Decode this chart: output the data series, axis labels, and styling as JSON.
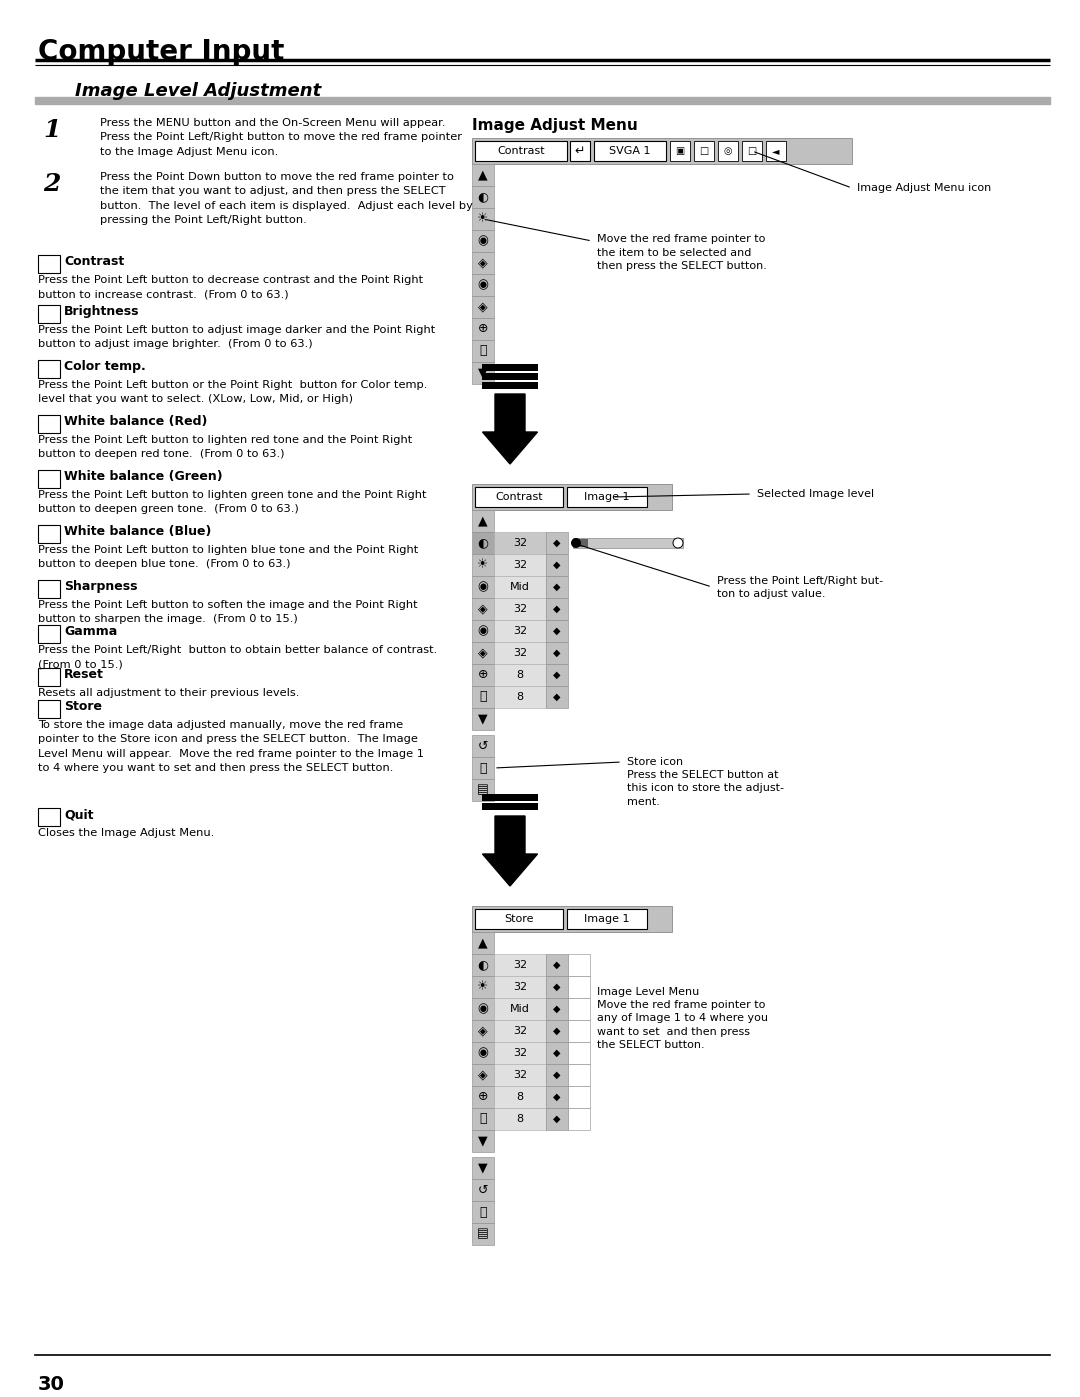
{
  "page_title": "Computer Input",
  "section_title": "Image Level Adjustment",
  "bg_color": "#ffffff",
  "step1_num": "1",
  "step1_text": "Press the MENU button and the On-Screen Menu will appear.\nPress the Point Left/Right button to move the red frame pointer\nto the Image Adjust Menu icon.",
  "step2_num": "2",
  "step2_text": "Press the Point Down button to move the red frame pointer to\nthe item that you want to adjust, and then press the SELECT\nbutton.  The level of each item is displayed.  Adjust each level by\npressing the Point Left/Right button.",
  "sections": [
    {
      "title": "Contrast",
      "text": "Press the Point Left button to decrease contrast and the Point Right\nbutton to increase contrast.  (From 0 to 63.)"
    },
    {
      "title": "Brightness",
      "text": "Press the Point Left button to adjust image darker and the Point Right\nbutton to adjust image brighter.  (From 0 to 63.)"
    },
    {
      "title": "Color temp.",
      "text": "Press the Point Left button or the Point Right  button for Color temp.\nlevel that you want to select. (XLow, Low, Mid, or High)"
    },
    {
      "title": "White balance (Red)",
      "text": "Press the Point Left button to lighten red tone and the Point Right\nbutton to deepen red tone.  (From 0 to 63.)"
    },
    {
      "title": "White balance (Green)",
      "text": "Press the Point Left button to lighten green tone and the Point Right\nbutton to deepen green tone.  (From 0 to 63.)"
    },
    {
      "title": "White balance (Blue)",
      "text": "Press the Point Left button to lighten blue tone and the Point Right\nbutton to deepen blue tone.  (From 0 to 63.)"
    },
    {
      "title": "Sharpness",
      "text": "Press the Point Left button to soften the image and the Point Right\nbutton to sharpen the image.  (From 0 to 15.)"
    },
    {
      "title": "Gamma",
      "text": "Press the Point Left/Right  button to obtain better balance of contrast.\n(From 0 to 15.)"
    },
    {
      "title": "Reset",
      "text": "Resets all adjustment to their previous levels."
    },
    {
      "title": "Store",
      "text": "To store the image data adjusted manually, move the red frame\npointer to the Store icon and press the SELECT button.  The Image\nLevel Menu will appear.  Move the red frame pointer to the Image 1\nto 4 where you want to set and then press the SELECT button."
    },
    {
      "title": "Quit",
      "text": "Closes the Image Adjust Menu."
    }
  ],
  "right_panel_title": "Image Adjust Menu",
  "menu1_label1": "Contrast",
  "menu1_label2": "SVGA 1",
  "menu2_label1": "Contrast",
  "menu2_label2": "Image 1",
  "menu3_label1": "Store",
  "menu3_label2": "Image 1",
  "callout1": "Image Adjust Menu icon",
  "callout2": "Move the red frame pointer to\nthe item to be selected and\nthen press the SELECT button.",
  "callout3": "Selected Image level",
  "callout4": "Press the Point Left/Right but-\nton to adjust value.",
  "callout5": "Store icon\nPress the SELECT button at\nthis icon to store the adjust-\nment.",
  "callout6": "Image Level Menu\nMove the red frame pointer to\nany of Image 1 to 4 where you\nwant to set  and then press\nthe SELECT button.",
  "page_number": "30",
  "menu_bg": "#c0c0c0",
  "menu_item_bg": "#e0e0e0",
  "gray_bar_color": "#999999",
  "section_bar_color": "#aaaaaa"
}
